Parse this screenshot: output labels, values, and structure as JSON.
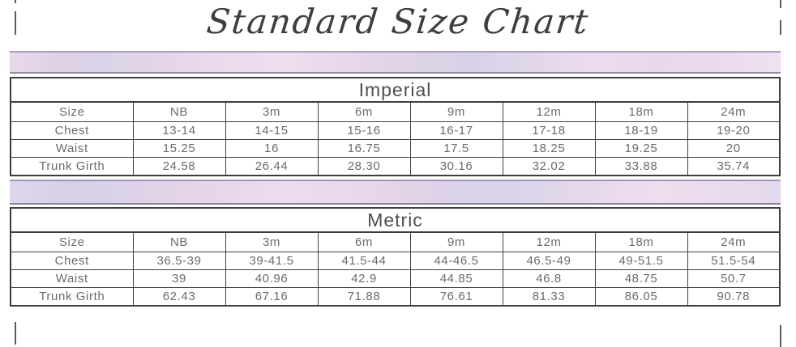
{
  "title": "Standard Size Chart",
  "tables": [
    {
      "title": "Imperial",
      "header": [
        "Size",
        "NB",
        "3m",
        "6m",
        "9m",
        "12m",
        "18m",
        "24m"
      ],
      "rows": [
        {
          "label": "Chest",
          "values": [
            "13-14",
            "14-15",
            "15-16",
            "16-17",
            "17-18",
            "18-19",
            "19-20"
          ]
        },
        {
          "label": "Waist",
          "values": [
            "15.25",
            "16",
            "16.75",
            "17.5",
            "18.25",
            "19.25",
            "20"
          ]
        },
        {
          "label": "Trunk Girth",
          "values": [
            "24.58",
            "26.44",
            "28.30",
            "30.16",
            "32.02",
            "33.88",
            "35.74"
          ]
        }
      ]
    },
    {
      "title": "Metric",
      "header": [
        "Size",
        "NB",
        "3m",
        "6m",
        "9m",
        "12m",
        "18m",
        "24m"
      ],
      "rows": [
        {
          "label": "Chest",
          "values": [
            "36.5-39",
            "39-41.5",
            "41.5-44",
            "44-46.5",
            "46.5-49",
            "49-51.5",
            "51.5-54"
          ]
        },
        {
          "label": "Waist",
          "values": [
            "39",
            "40.96",
            "42.9",
            "44.85",
            "46.8",
            "48.75",
            "50.7"
          ]
        },
        {
          "label": "Trunk Girth",
          "values": [
            "62.43",
            "67.16",
            "71.88",
            "76.61",
            "81.33",
            "86.05",
            "90.78"
          ]
        }
      ]
    }
  ],
  "colors": {
    "band_lavender": "#dcd3e8",
    "band_pink": "#eddcee",
    "band_top_border": "#aaa0c5",
    "table_border": "#414141",
    "table_text": "#6b6b6b",
    "title_text": "#3e3e3e"
  }
}
